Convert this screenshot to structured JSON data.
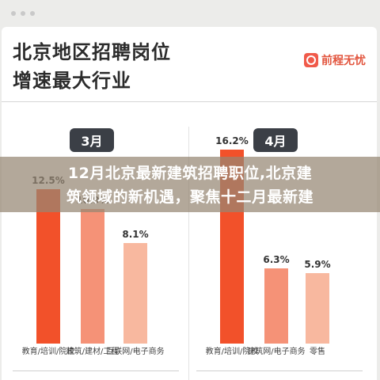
{
  "card": {
    "title_line1": "北京地区招聘岗位",
    "title_line2": "增速最大行业",
    "brand": "前程无忧"
  },
  "overlay": {
    "line1": "12月北京最新建筑招聘职位,北京建",
    "line2": "筑领域的新机遇，聚焦十二月最新建"
  },
  "chart_data": [
    {
      "type": "bar",
      "title": "3月",
      "categories": [
        "教育/培训/院校",
        "建筑/建材/工程",
        "互联网/电子商务"
      ],
      "values": [
        12.5,
        10.9,
        8.1
      ],
      "value_labels": [
        "12.5%",
        "10.9%",
        "8.1%"
      ],
      "colors": [
        "#f2512a",
        "#f59277",
        "#f8b89f"
      ],
      "ylim": [
        0,
        16
      ]
    },
    {
      "type": "bar",
      "title": "4月",
      "categories": [
        "教育/培训/院校",
        "建筑网/电子商务",
        "零售"
      ],
      "values": [
        16.2,
        6.3,
        5.9
      ],
      "value_labels": [
        "16.2%",
        "6.3%",
        "5.9%"
      ],
      "colors": [
        "#f2512a",
        "#f59277",
        "#f8b89f"
      ],
      "ylim": [
        0,
        16.5
      ]
    }
  ]
}
